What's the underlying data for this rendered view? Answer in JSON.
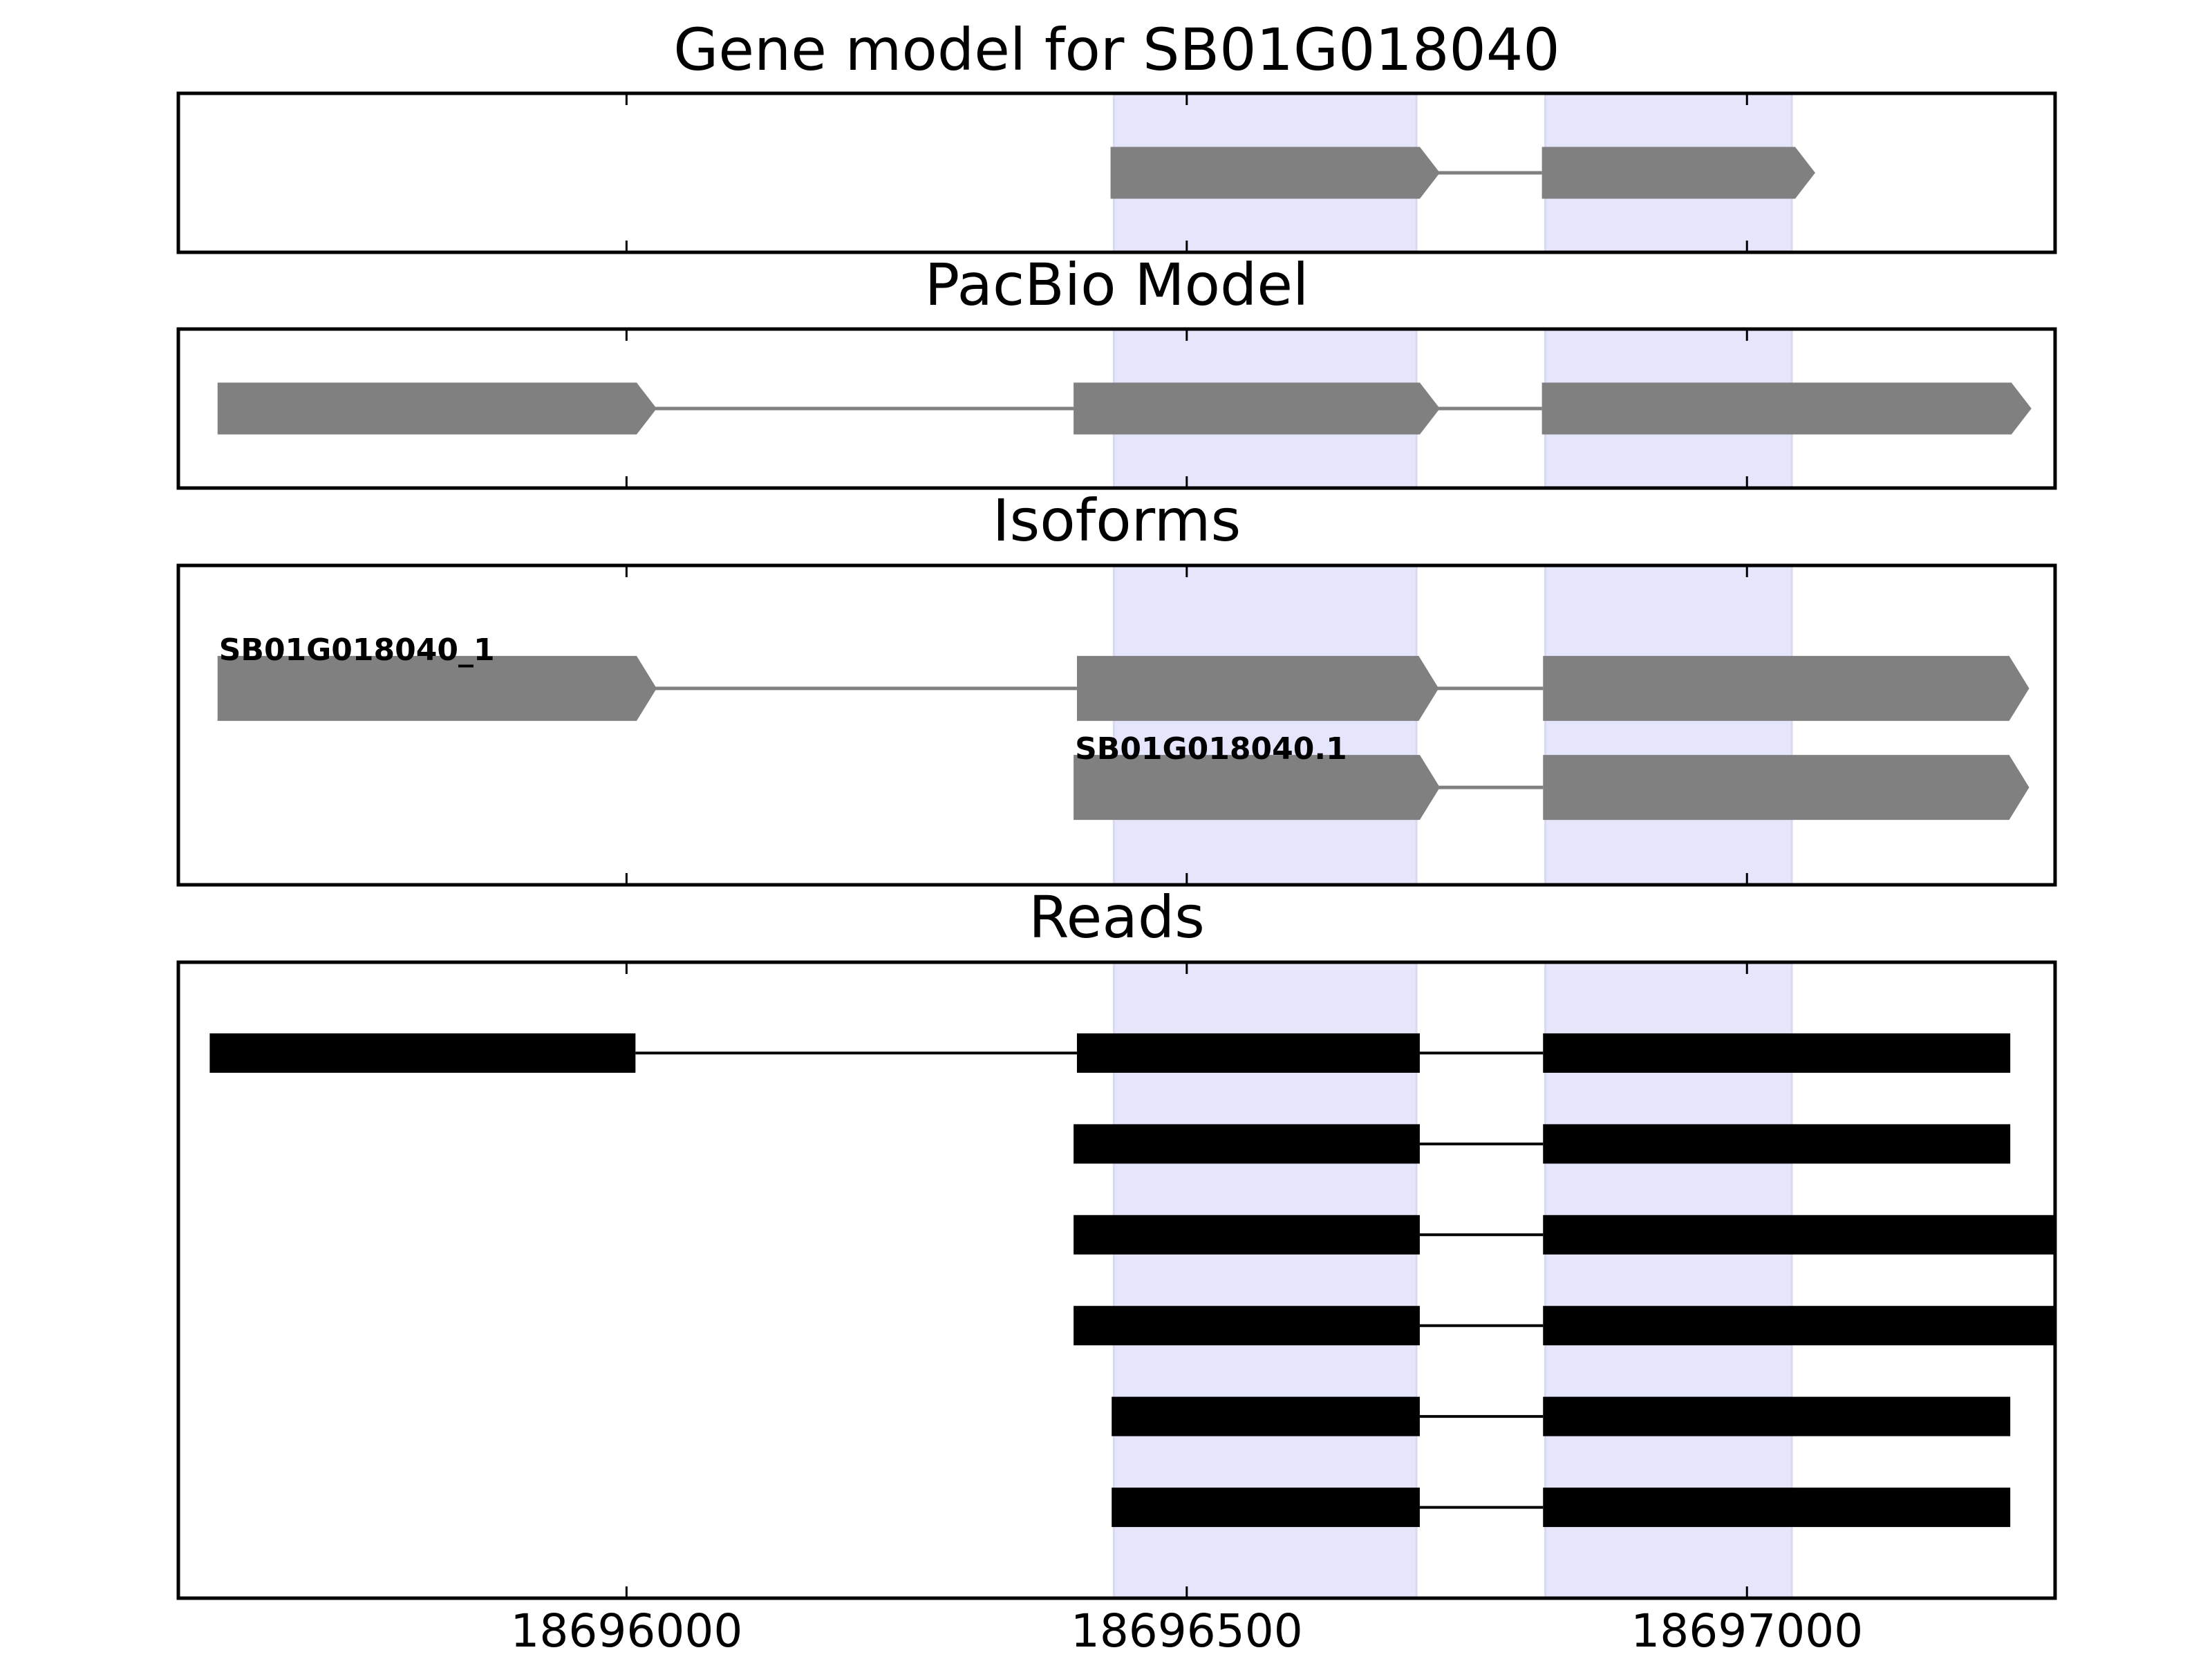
{
  "chart_data": [
    {
      "type": "gene-track",
      "title": "Gene model for SB01G018040",
      "style": "arrow",
      "color": "#808080",
      "xlim": [
        18695600,
        18697275
      ],
      "highlights": [
        [
          18696435,
          18696705
        ],
        [
          18696820,
          18697040
        ]
      ],
      "tracks": [
        {
          "exons": [
            [
              18696432,
              18696708
            ],
            [
              18696817,
              18697043
            ]
          ]
        }
      ]
    },
    {
      "type": "gene-track",
      "title": "PacBio Model",
      "style": "arrow",
      "color": "#808080",
      "xlim": [
        18695600,
        18697275
      ],
      "highlights": [
        [
          18696435,
          18696705
        ],
        [
          18696820,
          18697040
        ]
      ],
      "tracks": [
        {
          "exons": [
            [
              18695635,
              18696009
            ],
            [
              18696399,
              18696708
            ],
            [
              18696817,
              18697236
            ]
          ]
        }
      ]
    },
    {
      "type": "gene-track",
      "title": "Isoforms",
      "style": "arrow",
      "color": "#808080",
      "xlim": [
        18695600,
        18697275
      ],
      "highlights": [
        [
          18696435,
          18696705
        ],
        [
          18696820,
          18697040
        ]
      ],
      "tracks": [
        {
          "name": "SB01G018040_1",
          "exons": [
            [
              18695635,
              18696009
            ],
            [
              18696402,
              18696707
            ],
            [
              18696818,
              18697234
            ]
          ]
        },
        {
          "name": "SB01G018040.1",
          "exons": [
            [
              18696399,
              18696708
            ],
            [
              18696818,
              18697234
            ]
          ]
        }
      ]
    },
    {
      "type": "gene-track",
      "title": "Reads",
      "style": "bar",
      "color": "#000000",
      "xlim": [
        18695600,
        18697275
      ],
      "xticks": [
        18696000,
        18696500,
        18697000
      ],
      "highlights": [
        [
          18696435,
          18696705
        ],
        [
          18696820,
          18697040
        ]
      ],
      "tracks": [
        {
          "exons": [
            [
              18695628,
              18696008
            ],
            [
              18696402,
              18696708
            ],
            [
              18696818,
              18697235
            ]
          ]
        },
        {
          "exons": [
            [
              18696399,
              18696708
            ],
            [
              18696818,
              18697235
            ]
          ]
        },
        {
          "exons": [
            [
              18696399,
              18696708
            ],
            [
              18696818,
              18697300
            ]
          ]
        },
        {
          "exons": [
            [
              18696399,
              18696708
            ],
            [
              18696818,
              18697300
            ]
          ]
        },
        {
          "exons": [
            [
              18696433,
              18696708
            ],
            [
              18696818,
              18697235
            ]
          ]
        },
        {
          "exons": [
            [
              18696433,
              18696708
            ],
            [
              18696818,
              18697235
            ]
          ]
        }
      ]
    }
  ]
}
